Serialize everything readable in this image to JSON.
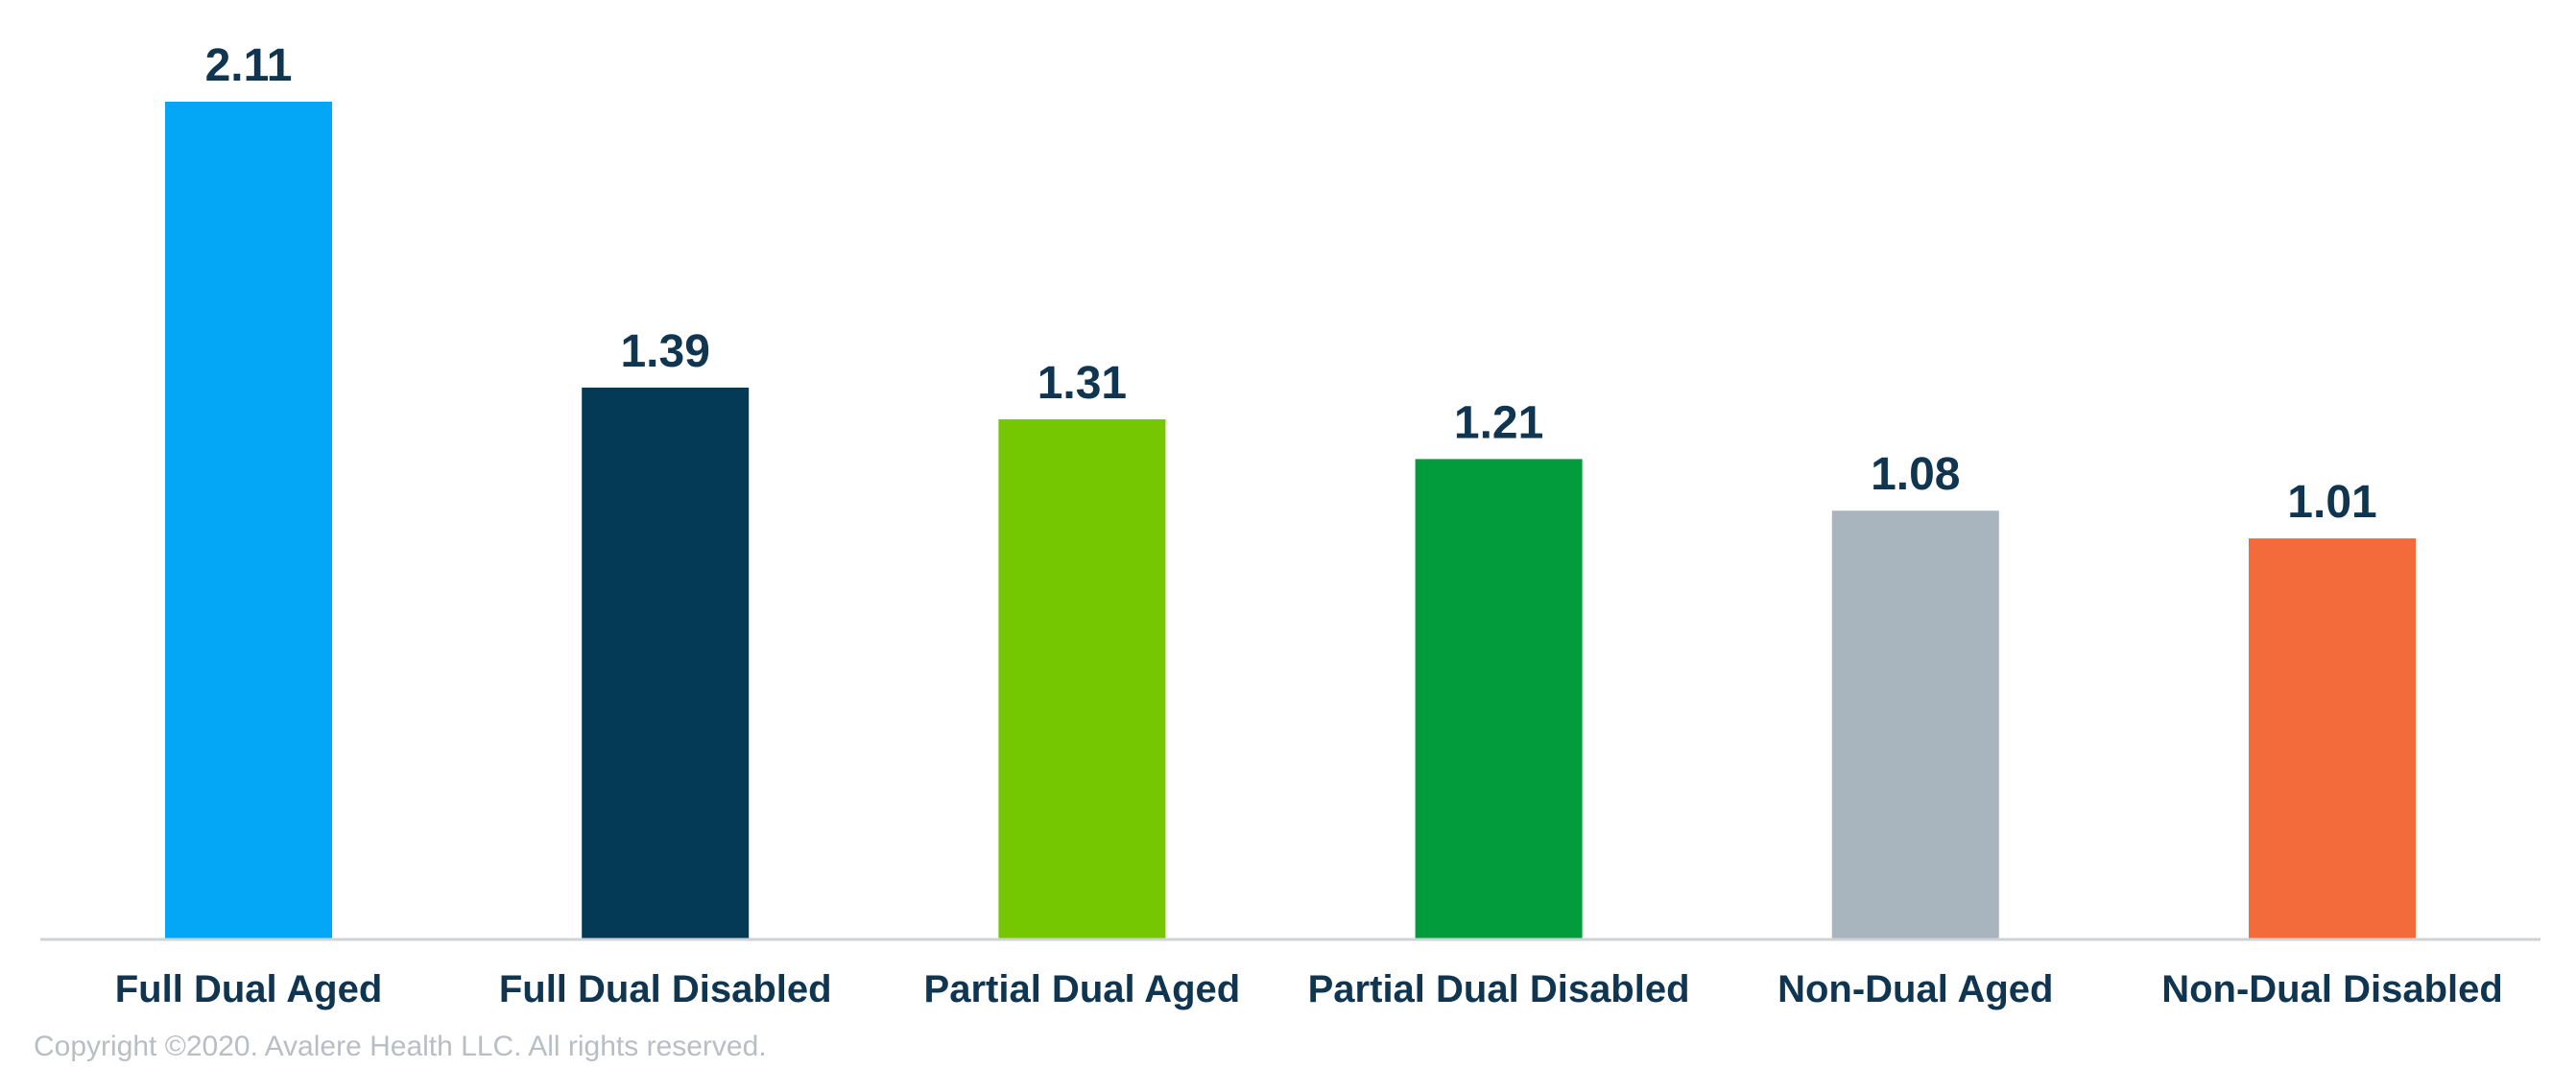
{
  "chart_data": {
    "type": "bar",
    "categories": [
      "Full Dual Aged",
      "Full Dual Disabled",
      "Partial Dual Aged",
      "Partial Dual Disabled",
      "Non-Dual Aged",
      "Non-Dual Disabled"
    ],
    "values": [
      2.11,
      1.39,
      1.31,
      1.21,
      1.08,
      1.01
    ],
    "data_labels": [
      "2.11",
      "1.39",
      "1.31",
      "1.21",
      "1.08",
      "1.01"
    ],
    "colors": [
      "#03a7f5",
      "#043a56",
      "#75c701",
      "#039c3d",
      "#a9b5be",
      "#f36b3b"
    ],
    "axis_color": "#d0d3d6",
    "label_color": "#0f3550",
    "ylim": [
      0,
      2.11
    ],
    "grid": false,
    "legend": "none"
  },
  "footer": {
    "copyright": "Copyright ©2020. Avalere Health LLC. All rights reserved."
  }
}
